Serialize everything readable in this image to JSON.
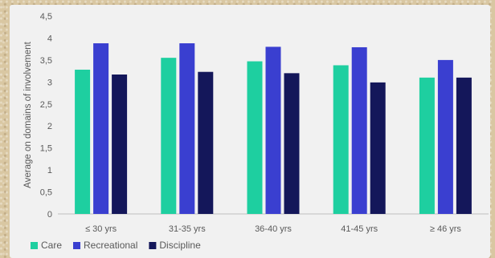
{
  "chart_data": {
    "type": "bar",
    "title": "",
    "xlabel": "",
    "ylabel": "Average on domains of involvement",
    "ylim": [
      0,
      4.5
    ],
    "yticks": [
      "0",
      "0,5",
      "1",
      "1,5",
      "2",
      "2,5",
      "3",
      "3,5",
      "4",
      "4,5"
    ],
    "categories": [
      "≤ 30 yrs",
      "31-35 yrs",
      "36-40 yrs",
      "41-45 yrs",
      "≥ 46 yrs"
    ],
    "series": [
      {
        "name": "Care",
        "color": "#1ecfa0",
        "values": [
          3.28,
          3.55,
          3.47,
          3.38,
          3.1
        ]
      },
      {
        "name": "Recreational",
        "color": "#3a3fd0",
        "values": [
          3.88,
          3.88,
          3.8,
          3.79,
          3.5
        ]
      },
      {
        "name": "Discipline",
        "color": "#14175a",
        "values": [
          3.17,
          3.23,
          3.2,
          2.99,
          3.1
        ]
      }
    ],
    "grid": false,
    "legend": "bottom-left"
  }
}
